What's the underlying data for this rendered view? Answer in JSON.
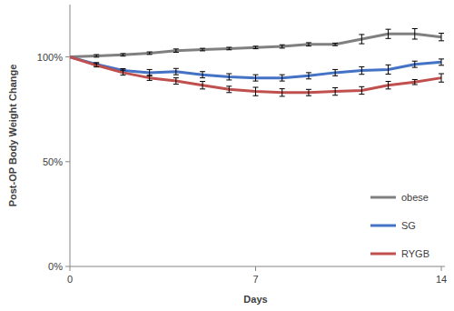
{
  "chart_data": {
    "type": "line",
    "x_label": "Days",
    "y_label": "Post-OP Body Weight Change",
    "x": [
      0,
      1,
      2,
      3,
      4,
      5,
      6,
      7,
      8,
      9,
      10,
      11,
      12,
      13,
      14
    ],
    "xlim": [
      0,
      14
    ],
    "xticks": [
      0,
      7,
      14
    ],
    "ylim": [
      0,
      125
    ],
    "yticks": [
      {
        "value": 0,
        "label": "0%"
      },
      {
        "value": 50,
        "label": "50%"
      },
      {
        "value": 100,
        "label": "100%"
      }
    ],
    "grid": false,
    "legend": "right",
    "series": [
      {
        "name": "obese",
        "color": "#808080",
        "values": [
          100,
          100.5,
          101,
          101.8,
          103,
          103.5,
          104,
          104.5,
          105,
          106,
          106,
          108.5,
          111,
          111,
          109.5
        ],
        "errors": [
          null,
          0.6,
          0.6,
          0.6,
          0.8,
          0.6,
          0.6,
          0.6,
          0.8,
          0.8,
          0.6,
          2.2,
          2.2,
          2.5,
          1.8
        ]
      },
      {
        "name": "SG",
        "color": "#4472c4",
        "values": [
          100,
          96.5,
          93.5,
          92.5,
          93,
          91.5,
          90.5,
          90,
          90,
          91,
          92.5,
          93.5,
          94,
          96.5,
          97.5
        ],
        "errors": [
          null,
          0.8,
          0.9,
          1.5,
          1.5,
          1.5,
          1.5,
          1.5,
          1.5,
          1.5,
          1.5,
          1.8,
          2.2,
          1.5,
          1.5
        ]
      },
      {
        "name": "RYGB",
        "color": "#c0504d",
        "values": [
          100,
          96,
          92.5,
          90,
          88.5,
          86.5,
          84.5,
          83.5,
          83,
          83,
          83.5,
          84,
          86.5,
          88,
          90
        ],
        "errors": [
          null,
          0.8,
          1.2,
          1.2,
          1.5,
          1.8,
          1.5,
          2,
          1.8,
          1.5,
          1.8,
          1.8,
          1.8,
          1.2,
          2
        ]
      }
    ]
  }
}
